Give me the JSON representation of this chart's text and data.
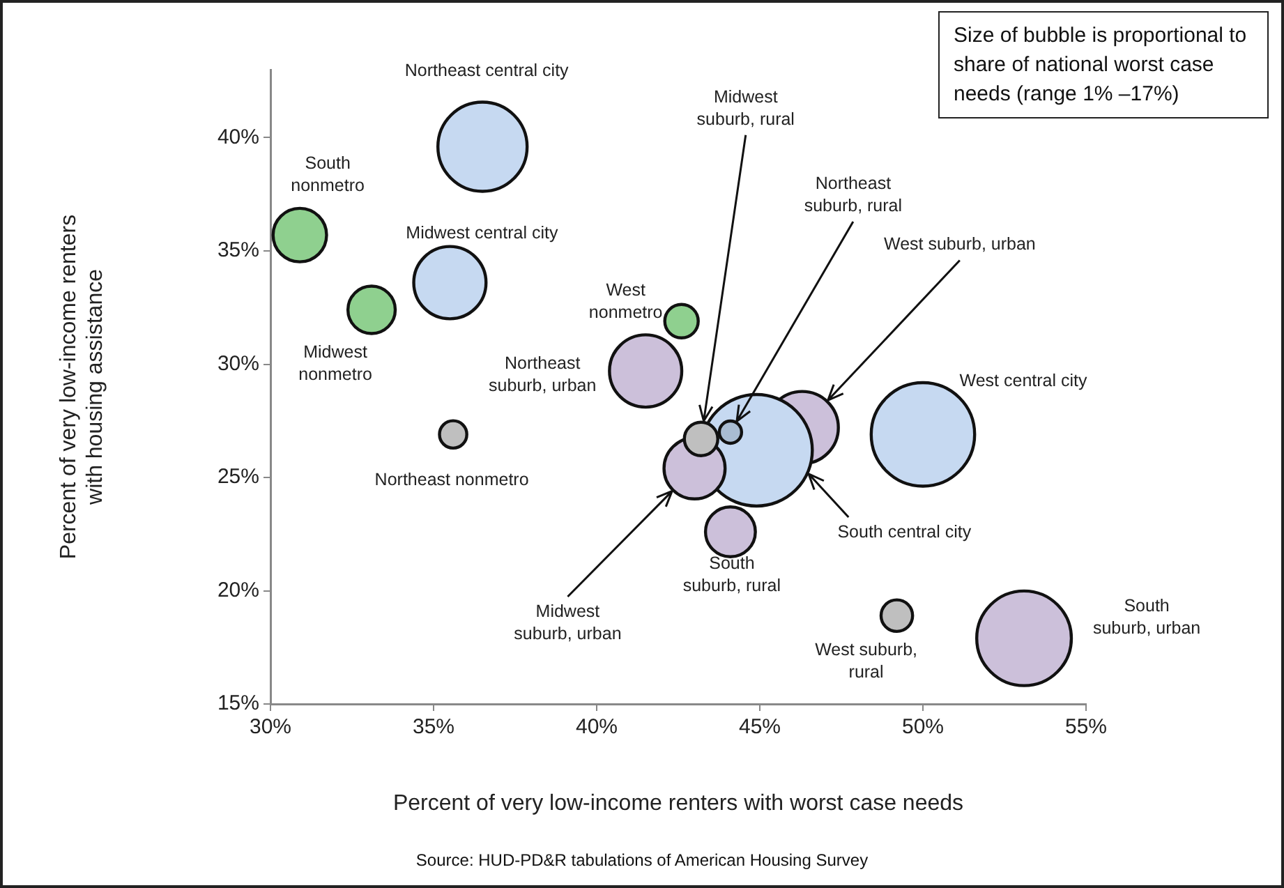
{
  "chart_data": {
    "type": "bubble",
    "xlabel": "Percent of very low-income renters with worst case needs",
    "ylabel": "Percent of very low-income renters with housing assistance",
    "xlim": [
      30,
      55
    ],
    "ylim": [
      15,
      43
    ],
    "xticks": [
      {
        "value": 30,
        "label": "30%"
      },
      {
        "value": 35,
        "label": "35%"
      },
      {
        "value": 40,
        "label": "40%"
      },
      {
        "value": 45,
        "label": "45%"
      },
      {
        "value": 50,
        "label": "50%"
      },
      {
        "value": 55,
        "label": "55%"
      }
    ],
    "yticks": [
      {
        "value": 15,
        "label": "15%"
      },
      {
        "value": 20,
        "label": "20%"
      },
      {
        "value": 25,
        "label": "25%"
      },
      {
        "value": 30,
        "label": "30%"
      },
      {
        "value": 35,
        "label": "35%"
      },
      {
        "value": 40,
        "label": "40%"
      }
    ],
    "grid": false,
    "legend": false,
    "annotations": [
      "Size of bubble is proportional to share of national worst case needs (range 1% –17%)",
      "Source: HUD-PD&R tabulations of American Housing Survey"
    ],
    "series": [
      {
        "name": "Northeast central city",
        "color": "#c6d9f1",
        "x": [
          36.5
        ],
        "values": [
          39.6
        ],
        "sizes": [
          0.64
        ]
      },
      {
        "name": "South nonmetro",
        "color": "#8fd08f",
        "x": [
          30.9
        ],
        "values": [
          35.7
        ],
        "sizes": [
          0.23
        ]
      },
      {
        "name": "Midwest central city",
        "color": "#c6d9f1",
        "x": [
          35.5
        ],
        "values": [
          33.6
        ],
        "sizes": [
          0.42
        ]
      },
      {
        "name": "Midwest nonmetro",
        "color": "#8fd08f",
        "x": [
          33.1
        ],
        "values": [
          32.4
        ],
        "sizes": [
          0.18
        ]
      },
      {
        "name": "West nonmetro",
        "color": "#8fd08f",
        "x": [
          42.6
        ],
        "values": [
          31.9
        ],
        "sizes": [
          0.09
        ]
      },
      {
        "name": "Northeast suburb, urban",
        "color": "#ccc0da",
        "x": [
          41.5
        ],
        "values": [
          29.7
        ],
        "sizes": [
          0.42
        ]
      },
      {
        "name": "Northeast nonmetro",
        "color": "#bfbfbf",
        "x": [
          35.6
        ],
        "values": [
          26.9
        ],
        "sizes": [
          0.06
        ]
      },
      {
        "name": "Midwest suburb, rural",
        "color": "#bfbfbf",
        "x": [
          43.2
        ],
        "values": [
          26.7
        ],
        "sizes": [
          0.09
        ]
      },
      {
        "name": "Northeast suburb, rural",
        "color": "#a9bcd2",
        "x": [
          44.1
        ],
        "values": [
          27.0
        ],
        "sizes": [
          0.04
        ]
      },
      {
        "name": "Midwest suburb, urban",
        "color": "#ccc0da",
        "x": [
          43.0
        ],
        "values": [
          25.4
        ],
        "sizes": [
          0.3
        ]
      },
      {
        "name": "South central city",
        "color": "#c6d9f1",
        "x": [
          44.9
        ],
        "values": [
          26.2
        ],
        "sizes": [
          1
        ]
      },
      {
        "name": "West suburb, urban",
        "color": "#ccc0da",
        "x": [
          46.3
        ],
        "values": [
          27.2
        ],
        "sizes": [
          0.42
        ]
      },
      {
        "name": "West central city",
        "color": "#c6d9f1",
        "x": [
          50.0
        ],
        "values": [
          26.9
        ],
        "sizes": [
          0.86
        ]
      },
      {
        "name": "South suburb, rural",
        "color": "#ccc0da",
        "x": [
          44.1
        ],
        "values": [
          22.6
        ],
        "sizes": [
          0.2
        ]
      },
      {
        "name": "West suburb, rural",
        "color": "#bfbfbf",
        "x": [
          49.2
        ],
        "values": [
          18.9
        ],
        "sizes": [
          0.08
        ]
      },
      {
        "name": "South suburb, urban",
        "color": "#ccc0da",
        "x": [
          53.1
        ],
        "values": [
          17.9
        ],
        "sizes": [
          0.72
        ]
      }
    ]
  }
}
